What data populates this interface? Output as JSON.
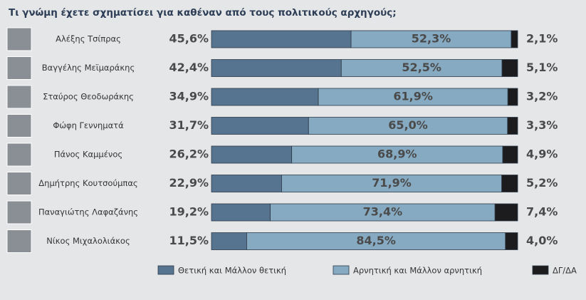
{
  "chart_data": {
    "type": "stacked-bar",
    "title": "Τι γνώμη έχετε σχηματίσει για καθέναν από τους πολιτικούς αρχηγούς;",
    "categories": [
      "Αλέξης Τσίπρας",
      "Βαγγέλης Μεϊμαράκης",
      "Σταύρος Θεοδωράκης",
      "Φώφη Γεννηματά",
      "Πάνος Καμμένος",
      "Δημήτρης Κουτσούμπας",
      "Παναγιώτης Λαφαζάνης",
      "Νίκος Μιχαλολιάκος"
    ],
    "series": [
      {
        "name": "Θετική και Μάλλον θετική",
        "color": "#56738f",
        "values": [
          45.6,
          42.4,
          34.9,
          31.7,
          26.2,
          22.9,
          19.2,
          11.5
        ],
        "value_labels": [
          "45,6%",
          "42,4%",
          "34,9%",
          "31,7%",
          "26,2%",
          "22,9%",
          "19,2%",
          "11,5%"
        ]
      },
      {
        "name": "Αρνητική και Μάλλον αρνητική",
        "color": "#86aac2",
        "values": [
          52.3,
          52.5,
          61.9,
          65.0,
          68.9,
          71.9,
          73.4,
          84.5
        ],
        "value_labels": [
          "52,3%",
          "52,5%",
          "61,9%",
          "65,0%",
          "68,9%",
          "71,9%",
          "73,4%",
          "84,5%"
        ]
      },
      {
        "name": "ΔΓ/ΔΑ",
        "color": "#1c1c1e",
        "values": [
          2.1,
          5.1,
          3.2,
          3.3,
          4.9,
          5.2,
          7.4,
          4.0
        ],
        "value_labels": [
          "2,1%",
          "5,1%",
          "3,2%",
          "3,3%",
          "4,9%",
          "5,2%",
          "7,4%",
          "4,0%"
        ]
      }
    ]
  }
}
